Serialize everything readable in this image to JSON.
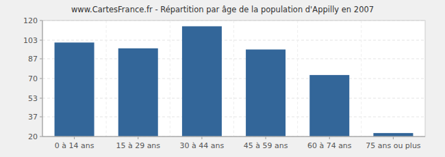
{
  "chart_data": {
    "type": "bar",
    "title": "www.CartesFrance.fr - Répartition par âge de la population d'Appilly en 2007",
    "categories": [
      "0 à 14 ans",
      "15 à 29 ans",
      "30 à 44 ans",
      "45 à 59 ans",
      "60 à 74 ans",
      "75 ans ou plus"
    ],
    "values": [
      101,
      96,
      115,
      95,
      73,
      23
    ],
    "color": "#336699",
    "ylim": [
      20,
      120
    ],
    "yticks": [
      20,
      37,
      53,
      70,
      87,
      103,
      120
    ],
    "grid": true
  }
}
